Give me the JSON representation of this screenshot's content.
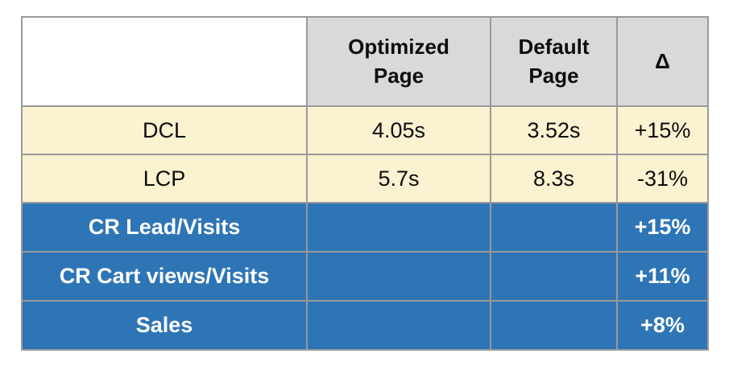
{
  "colors": {
    "header_bg": "#d9d9d9",
    "metric_row_bg": "#faf2d0",
    "conversion_row_bg": "#2e75b6",
    "border": "#9a9a9a",
    "text_dark": "#0d0d0d",
    "text_light": "#ffffff"
  },
  "chart_data": {
    "type": "table",
    "columns": [
      "",
      "Optimized Page",
      "Default Page",
      "Δ"
    ],
    "rows": [
      [
        "DCL",
        "4.05s",
        "3.52s",
        "+15%"
      ],
      [
        "LCP",
        "5.7s",
        "8.3s",
        "-31%"
      ],
      [
        "CR Lead/Visits",
        "",
        "",
        "+15%"
      ],
      [
        "CR Cart views/Visits",
        "",
        "",
        "+11%"
      ],
      [
        "Sales",
        "",
        "",
        "+8%"
      ]
    ],
    "layout_hints": {
      "header_fill": "gray",
      "timing_rows_fill": "cream",
      "conversion_rows_fill": "blue",
      "grid": "on"
    }
  }
}
